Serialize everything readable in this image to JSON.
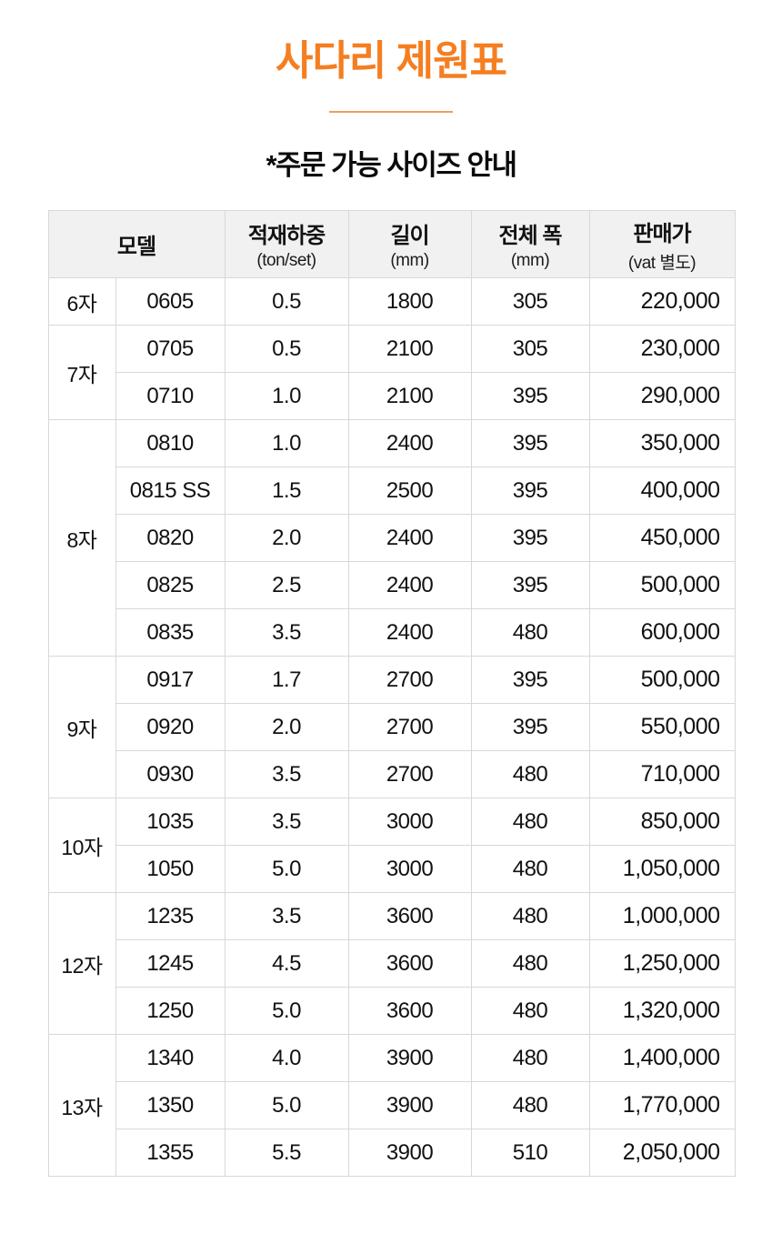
{
  "page": {
    "title": "사다리 제원표",
    "subtitle": "*주문 가능 사이즈 안내"
  },
  "colors": {
    "accent_orange": "#F57E20",
    "divider_orange": "#EC9F57",
    "header_background": "#F1F1F1",
    "grid_border": "#D8D8D8",
    "text": "#111111"
  },
  "table": {
    "headers": [
      {
        "label": "모델",
        "sub": ""
      },
      {
        "label": "적재하중",
        "sub": "(ton/set)"
      },
      {
        "label": "길이",
        "sub": "(mm)"
      },
      {
        "label": "전체 폭",
        "sub": "(mm)"
      },
      {
        "label": "판매가",
        "sub": "(vat 별도)"
      }
    ],
    "groups": [
      {
        "name": "6자",
        "rows": [
          {
            "model": "0605",
            "load": "0.5",
            "length": "1800",
            "width": "305",
            "price": "220,000"
          }
        ]
      },
      {
        "name": "7자",
        "rows": [
          {
            "model": "0705",
            "load": "0.5",
            "length": "2100",
            "width": "305",
            "price": "230,000"
          },
          {
            "model": "0710",
            "load": "1.0",
            "length": "2100",
            "width": "395",
            "price": "290,000"
          }
        ]
      },
      {
        "name": "8자",
        "rows": [
          {
            "model": "0810",
            "load": "1.0",
            "length": "2400",
            "width": "395",
            "price": "350,000"
          },
          {
            "model": "0815 SS",
            "load": "1.5",
            "length": "2500",
            "width": "395",
            "price": "400,000"
          },
          {
            "model": "0820",
            "load": "2.0",
            "length": "2400",
            "width": "395",
            "price": "450,000"
          },
          {
            "model": "0825",
            "load": "2.5",
            "length": "2400",
            "width": "395",
            "price": "500,000"
          },
          {
            "model": "0835",
            "load": "3.5",
            "length": "2400",
            "width": "480",
            "price": "600,000"
          }
        ]
      },
      {
        "name": "9자",
        "rows": [
          {
            "model": "0917",
            "load": "1.7",
            "length": "2700",
            "width": "395",
            "price": "500,000"
          },
          {
            "model": "0920",
            "load": "2.0",
            "length": "2700",
            "width": "395",
            "price": "550,000"
          },
          {
            "model": "0930",
            "load": "3.5",
            "length": "2700",
            "width": "480",
            "price": "710,000"
          }
        ]
      },
      {
        "name": "10자",
        "rows": [
          {
            "model": "1035",
            "load": "3.5",
            "length": "3000",
            "width": "480",
            "price": "850,000"
          },
          {
            "model": "1050",
            "load": "5.0",
            "length": "3000",
            "width": "480",
            "price": "1,050,000"
          }
        ]
      },
      {
        "name": "12자",
        "rows": [
          {
            "model": "1235",
            "load": "3.5",
            "length": "3600",
            "width": "480",
            "price": "1,000,000"
          },
          {
            "model": "1245",
            "load": "4.5",
            "length": "3600",
            "width": "480",
            "price": "1,250,000"
          },
          {
            "model": "1250",
            "load": "5.0",
            "length": "3600",
            "width": "480",
            "price": "1,320,000"
          }
        ]
      },
      {
        "name": "13자",
        "rows": [
          {
            "model": "1340",
            "load": "4.0",
            "length": "3900",
            "width": "480",
            "price": "1,400,000"
          },
          {
            "model": "1350",
            "load": "5.0",
            "length": "3900",
            "width": "480",
            "price": "1,770,000"
          },
          {
            "model": "1355",
            "load": "5.5",
            "length": "3900",
            "width": "510",
            "price": "2,050,000"
          }
        ]
      }
    ]
  }
}
